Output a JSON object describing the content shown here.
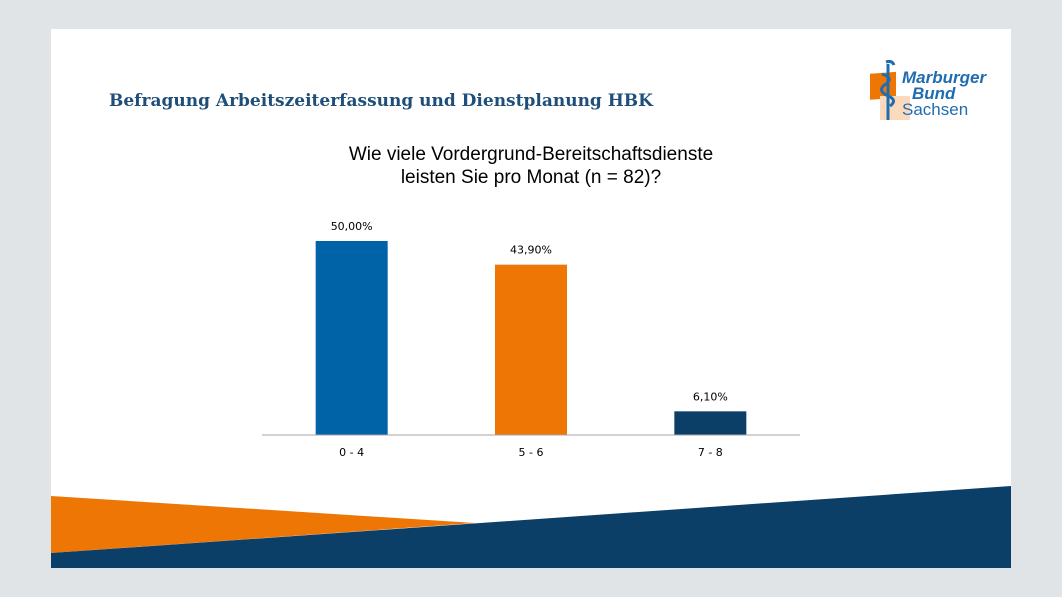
{
  "slide": {
    "heading": "Befragung Arbeitszeiterfassung und Dienstplanung HBK",
    "logo": {
      "line1": "Marburger",
      "line2": "Bund",
      "line3": "Sachsen"
    },
    "colors": {
      "navy": "#0b3f68",
      "orange": "#ee7604",
      "blue": "#0062a7"
    }
  },
  "chart_data": {
    "type": "bar",
    "title": "Wie viele Vordergrund-Bereitschaftsdienste leisten Sie pro Monat (n = 82)?",
    "title_lines": [
      "Wie viele Vordergrund-Bereitschaftsdienste",
      "leisten Sie pro Monat (n = 82)?"
    ],
    "categories": [
      "0 - 4",
      "5 - 6",
      "7 - 8"
    ],
    "values": [
      50.0,
      43.9,
      6.1
    ],
    "data_labels": [
      "50,00%",
      "43,90%",
      "6,10%"
    ],
    "bar_colors": [
      "#0062a7",
      "#ee7604",
      "#0b3f68"
    ],
    "xlabel": "",
    "ylabel": "",
    "ylim": [
      0,
      50
    ],
    "grid": false,
    "legend": "none"
  }
}
